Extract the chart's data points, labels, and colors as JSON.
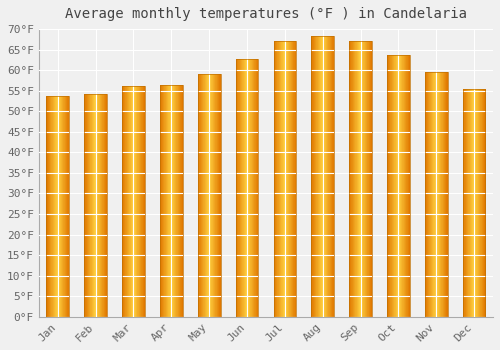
{
  "title": "Average monthly temperatures (°F ) in Candelaria",
  "months": [
    "Jan",
    "Feb",
    "Mar",
    "Apr",
    "May",
    "Jun",
    "Jul",
    "Aug",
    "Sep",
    "Oct",
    "Nov",
    "Dec"
  ],
  "values": [
    53.8,
    54.3,
    56.1,
    56.3,
    59.0,
    62.6,
    67.1,
    68.2,
    67.1,
    63.7,
    59.5,
    55.4
  ],
  "bar_color_edge": "#E07800",
  "bar_color_center": "#FFD040",
  "bar_color_main": "#FFA820",
  "ylim": [
    0,
    70
  ],
  "yticks": [
    0,
    5,
    10,
    15,
    20,
    25,
    30,
    35,
    40,
    45,
    50,
    55,
    60,
    65,
    70
  ],
  "ytick_labels": [
    "0°F",
    "5°F",
    "10°F",
    "15°F",
    "20°F",
    "25°F",
    "30°F",
    "35°F",
    "40°F",
    "45°F",
    "50°F",
    "55°F",
    "60°F",
    "65°F",
    "70°F"
  ],
  "background_color": "#f0f0f0",
  "plot_bg_color": "#f0f0f0",
  "grid_color": "#ffffff",
  "title_fontsize": 10,
  "tick_fontsize": 8,
  "bar_width": 0.6
}
